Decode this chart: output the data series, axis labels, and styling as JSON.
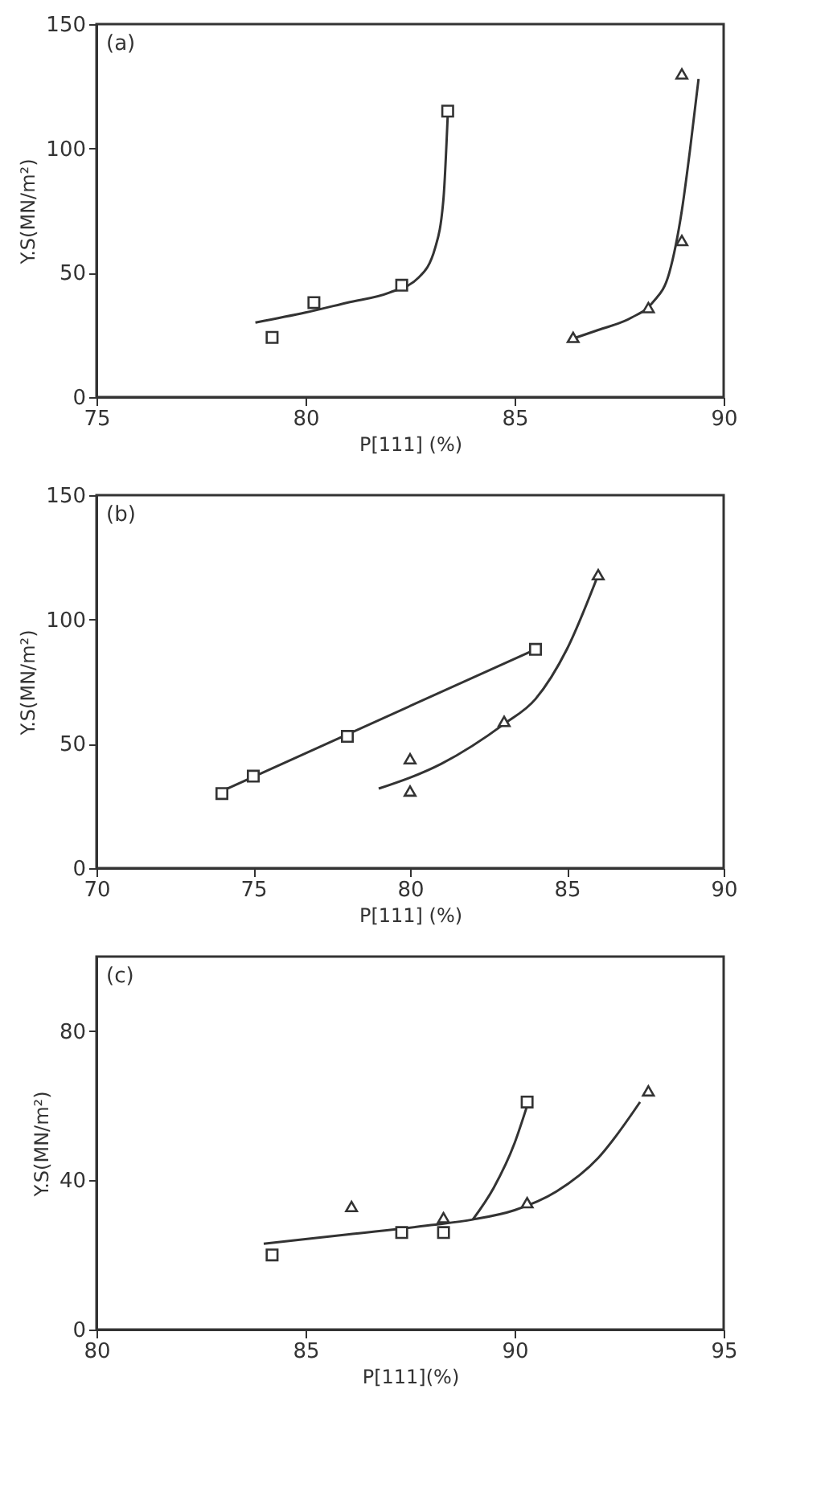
{
  "chart_data": [
    {
      "type": "scatter",
      "annotations": [
        "(a)"
      ],
      "xlabel": "P[111] (%)",
      "ylabel": "Y.S(MN/m²)",
      "xlim": [
        75,
        90
      ],
      "ylim": [
        0,
        150
      ],
      "xticks": [
        75,
        80,
        85,
        90
      ],
      "yticks": [
        0,
        50,
        100,
        150
      ],
      "series": [
        {
          "marker": "square",
          "color": "#333333",
          "x": [
            79.2,
            80.2,
            82.3,
            83.4
          ],
          "values": [
            24,
            38,
            45,
            115
          ]
        },
        {
          "marker": "triangle",
          "color": "#333333",
          "x": [
            86.4,
            88.2,
            89.0,
            89.0
          ],
          "values": [
            24,
            36,
            63,
            130
          ]
        },
        {
          "type": "line",
          "color": "#333333",
          "x": [
            78.8,
            80,
            81,
            82,
            82.7,
            83.1,
            83.3,
            83.4
          ],
          "values": [
            30,
            34,
            38,
            42,
            48,
            60,
            80,
            113
          ]
        },
        {
          "type": "line",
          "color": "#333333",
          "x": [
            86.3,
            87,
            87.8,
            88.3,
            88.7,
            89.0,
            89.2,
            89.4
          ],
          "values": [
            23,
            27,
            32,
            38,
            50,
            75,
            100,
            128
          ]
        }
      ]
    },
    {
      "type": "scatter",
      "annotations": [
        "(b)"
      ],
      "xlabel": "P[111] (%)",
      "ylabel": "Y.S(MN/m²)",
      "xlim": [
        70,
        90
      ],
      "ylim": [
        0,
        150
      ],
      "xticks": [
        70,
        75,
        80,
        85,
        90
      ],
      "yticks": [
        0,
        50,
        100,
        150
      ],
      "series": [
        {
          "marker": "square",
          "color": "#333333",
          "x": [
            74,
            75,
            78,
            84
          ],
          "values": [
            30,
            37,
            53,
            88
          ]
        },
        {
          "marker": "triangle",
          "color": "#333333",
          "x": [
            80,
            80,
            83,
            86
          ],
          "values": [
            44,
            31,
            59,
            118
          ]
        },
        {
          "type": "line",
          "color": "#333333",
          "x": [
            74,
            84
          ],
          "values": [
            31,
            88
          ]
        },
        {
          "type": "line",
          "color": "#333333",
          "x": [
            79,
            81,
            83,
            84,
            85,
            86
          ],
          "values": [
            32,
            42,
            58,
            68,
            88,
            118
          ]
        }
      ]
    },
    {
      "type": "scatter",
      "annotations": [
        "(c)"
      ],
      "xlabel": "P[111](%)",
      "ylabel": "Y.S(MN/m²)",
      "xlim": [
        80,
        95
      ],
      "ylim": [
        0,
        100
      ],
      "xticks": [
        80,
        85,
        90,
        95
      ],
      "yticks": [
        0,
        40,
        80
      ],
      "series": [
        {
          "marker": "square",
          "color": "#333333",
          "x": [
            84.2,
            87.3,
            88.3,
            90.3
          ],
          "values": [
            20,
            26,
            26,
            61
          ]
        },
        {
          "marker": "triangle",
          "color": "#333333",
          "x": [
            86.1,
            88.3,
            90.3,
            93.2
          ],
          "values": [
            33,
            30,
            34,
            64
          ]
        },
        {
          "type": "line",
          "color": "#333333",
          "x": [
            84,
            86,
            88,
            89,
            90,
            91,
            92,
            93
          ],
          "values": [
            23,
            25.5,
            28,
            29.5,
            32,
            37,
            46,
            61
          ]
        },
        {
          "type": "line",
          "color": "#333333",
          "x": [
            89,
            89.5,
            90,
            90.3
          ],
          "values": [
            29.5,
            38,
            50,
            60
          ]
        }
      ]
    }
  ]
}
